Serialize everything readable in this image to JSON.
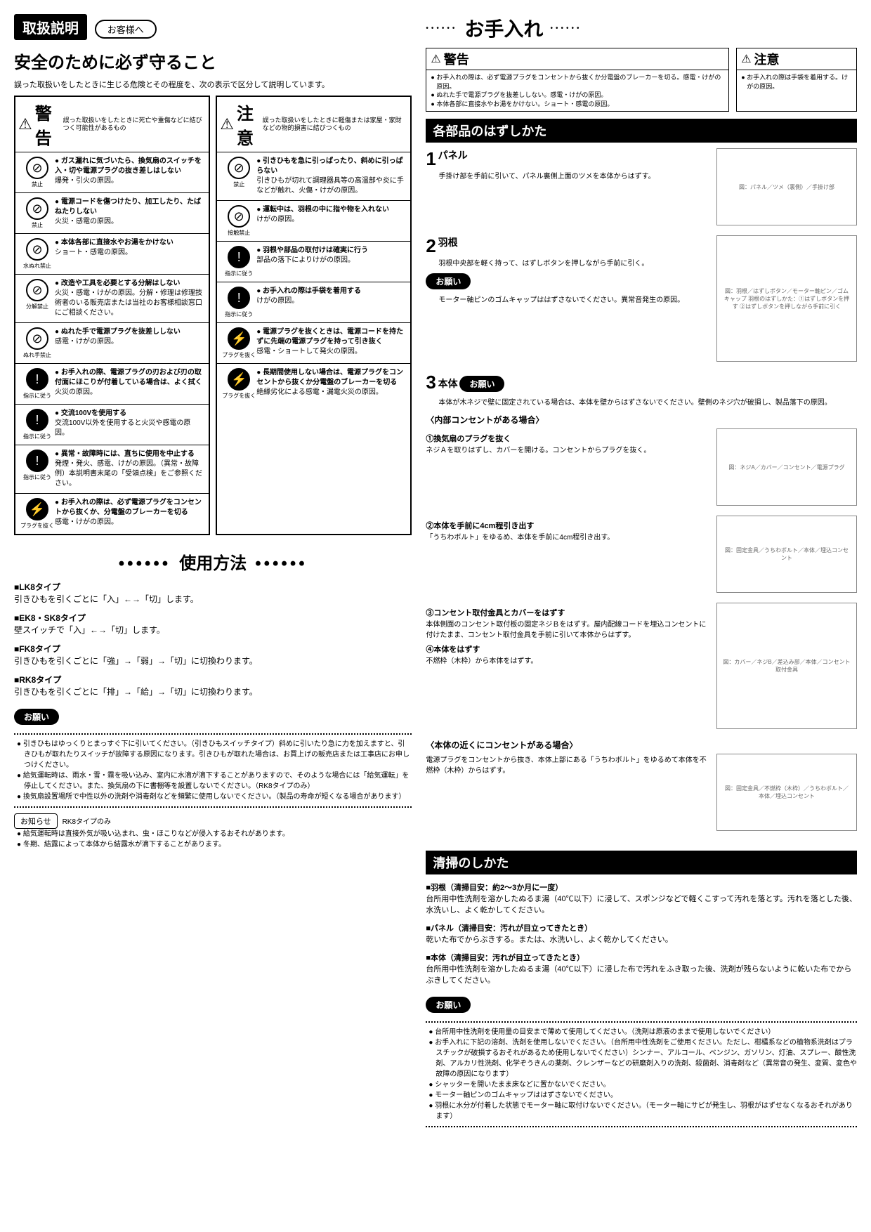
{
  "header": {
    "handling": "取扱説明",
    "customer": "お客様へ"
  },
  "safety": {
    "title": "安全のために必ず守ること",
    "lead": "誤った取扱いをしたときに生じる危険とその程度を、次の表示で区分して説明しています。",
    "warning_label": "警告",
    "warning_desc": "誤った取扱いをしたときに死亡や重傷などに結びつく可能性があるもの",
    "caution_label": "注意",
    "caution_desc": "誤った取扱いをしたときに軽傷または家屋・家財などの物的損害に結びつくもの"
  },
  "symbols": {
    "prohibit": "禁止",
    "nowater": "水ぬれ禁止",
    "nodisasm": "分解禁止",
    "nowethand": "ぬれ手禁止",
    "follow": "指示に従う",
    "unplug": "プラグを抜く",
    "notouch": "接触禁止"
  },
  "warnings": [
    {
      "sym": "prohibit",
      "main": "ガス漏れに気づいたら、換気扇のスイッチを入・切や電源プラグの抜き差しはしない",
      "sub": "爆発・引火の原因。"
    },
    {
      "sym": "prohibit",
      "main": "電源コードを傷つけたり、加工したり、たばねたりしない",
      "sub": "火災・感電の原因。"
    },
    {
      "sym": "nowater",
      "main": "本体各部に直接水やお湯をかけない",
      "sub": "ショート・感電の原因。"
    },
    {
      "sym": "nodisasm",
      "main": "改造や工具を必要とする分解はしない",
      "sub": "火災・感電・けがの原因。分解・修理は修理技術者のいる販売店または当社のお客様相談窓口にご相談ください。"
    },
    {
      "sym": "nowethand",
      "main": "ぬれた手で電源プラグを抜差ししない",
      "sub": "感電・けがの原因。"
    },
    {
      "sym": "follow",
      "main": "お手入れの際、電源プラグの刃および刃の取付面にほこりが付着している場合は、よく拭く",
      "sub": "火災の原因。"
    },
    {
      "sym": "follow",
      "main": "交流100Vを使用する",
      "sub": "交流100V以外を使用すると火災や感電の原因。"
    },
    {
      "sym": "follow",
      "main": "異常・故障時には、直ちに使用を中止する",
      "sub": "発煙・発火、感電、けがの原因。（異常・故障例）本説明書末尾の「受領点検」をご参照ください。"
    },
    {
      "sym": "unplug",
      "main": "お手入れの際は、必ず電源プラグをコンセントから抜くか、分電盤のブレーカーを切る",
      "sub": "感電・けがの原因。"
    }
  ],
  "cautions": [
    {
      "sym": "prohibit",
      "main": "引きひもを急に引っぱったり、斜めに引っぱらない",
      "sub": "引きひもが切れて調理器具等の高温部や炎に手などが触れ、火傷・けがの原因。"
    },
    {
      "sym": "notouch",
      "main": "運転中は、羽根の中に指や物を入れない",
      "sub": "けがの原因。"
    },
    {
      "sym": "follow",
      "main": "羽根や部品の取付けは確実に行う",
      "sub": "部品の落下によりけがの原因。"
    },
    {
      "sym": "follow",
      "main": "お手入れの際は手袋を着用する",
      "sub": "けがの原因。"
    },
    {
      "sym": "unplug",
      "main": "電源プラグを抜くときは、電源コードを持たずに先端の電源プラグを持って引き抜く",
      "sub": "感電・ショートして発火の原因。"
    },
    {
      "sym": "unplug",
      "main": "長期間使用しない場合は、電源プラグをコンセントから抜くか分電盤のブレーカーを切る",
      "sub": "絶縁劣化による感電・漏電火災の原因。"
    }
  ],
  "usage": {
    "title": "使用方法",
    "items": [
      {
        "label": "■LK8タイプ",
        "text": "引きひもを引くごとに「入」←→「切」します。"
      },
      {
        "label": "■EK8・SK8タイプ",
        "text": "壁スイッチで「入」←→「切」します。"
      },
      {
        "label": "■FK8タイプ",
        "text": "引きひもを引くごとに「強」→「弱」→「切」に切換わります。"
      },
      {
        "label": "■RK8タイプ",
        "text": "引きひもを引くごとに「排」→「給」→「切」に切換わります。"
      }
    ],
    "request": "お願い",
    "requests": [
      "引きひもはゆっくりとまっすぐ下に引いてください。（引きひもスイッチタイプ）斜めに引いたり急に力を加えますと、引きひもが取れたりスイッチが故障する原因になります。引きひもが取れた場合は、お買上げの販売店または工事店にお申しつけください。",
      "給気運転時は、雨水・雪・霧を吸い込み、室内に水滴が滴下することがありますので、そのような場合には「給気運転」を停止してください。また、換気扇の下に書棚等を設置しないでください。（RK8タイプのみ）",
      "換気扇設置場所で中性以外の洗剤や消毒剤などを頻繁に使用しないでください。（製品の寿命が短くなる場合があります）"
    ],
    "notice_label": "お知らせ",
    "notice_sub": "RK8タイプのみ",
    "notices": [
      "給気運転時は直接外気が吸い込まれ、虫・ほこりなどが侵入するおそれがあります。",
      "冬期、結露によって本体から結露水が滴下することがあります。"
    ]
  },
  "maint": {
    "title": "お手入れ",
    "warn_items": [
      "お手入れの際は、必ず電源プラグをコンセントから抜くか分電盤のブレーカーを切る。感電・けがの原因。",
      "ぬれた手で電源プラグを抜差ししない。感電・けがの原因。",
      "本体各部に直接水やお湯をかけない。ショート・感電の原因。"
    ],
    "caution_items": [
      "お手入れの際は手袋を着用する。けがの原因。"
    ]
  },
  "removal": {
    "title": "各部品のはずしかた",
    "panel": {
      "num": "1",
      "title": "パネル",
      "text": "手掛け部を手前に引いて、パネル裏側上面のツメを本体からはずす。"
    },
    "panel_fig": "図：パネル／ツメ（裏側）／手掛け部",
    "blade": {
      "num": "2",
      "title": "羽根",
      "text": "羽根中央部を軽く持って、はずしボタンを押しながら手前に引く。"
    },
    "blade_req_label": "お願い",
    "blade_req": "モーター軸ピンのゴムキャップははずさないでください。異常音発生の原因。",
    "blade_fig": "図：羽根／はずしボタン／モーター軸ピン／ゴムキャップ\n羽根のはずしかた：①はずしボタンを押す ②はずしボタンを押しながら手前に引く",
    "body": {
      "num": "3",
      "title": "本体"
    },
    "body_req": "本体が木ネジで壁に固定されている場合は、本体を壁からはずさないでください。壁側のネジ穴が破損し、製品落下の原因。",
    "inner_outlet": "〈内部コンセントがある場合〉",
    "sub1": {
      "h": "①換気扇のプラグを抜く",
      "t": "ネジＡを取りはずし、カバーを開ける。コンセントからプラグを抜く。"
    },
    "sub1_fig": "図：ネジA／カバー／コンセント／電源プラグ",
    "sub2": {
      "h": "②本体を手前に4cm程引き出す",
      "t": "「うちわボルト」をゆるめ、本体を手前に4cm程引き出す。"
    },
    "sub2_fig": "図：固定金具／うちわボルト／本体／埋込コンセント",
    "sub3": {
      "h": "③コンセント取付金具とカバーをはずす",
      "t": "本体側面のコンセント取付板の固定ネジＢをはずす。屋内配線コードを埋込コンセントに付けたまま、コンセント取付金具を手前に引いて本体からはずす。"
    },
    "sub3_fig": "図：カバー／ネジB／差込み部／本体／コンセント取付金具",
    "sub4": {
      "h": "④本体をはずす",
      "t": "不燃枠（木枠）から本体をはずす。"
    },
    "near_outlet": "〈本体の近くにコンセントがある場合〉",
    "near_text": "電源プラグをコンセントから抜き、本体上部にある「うちわボルト」をゆるめて本体を不燃枠（木枠）からはずす。",
    "near_fig": "図：固定金具／不燃枠（木枠）／うちわボルト／本体／埋込コンセント"
  },
  "cleaning": {
    "title": "清掃のしかた",
    "items": [
      {
        "h": "■羽根（清掃目安：約2〜3か月に一度）",
        "t": "台所用中性洗剤を溶かしたぬるま湯（40℃以下）に浸して、スポンジなどで軽くこすって汚れを落とす。汚れを落とした後、水洗いし、よく乾かしてください。"
      },
      {
        "h": "■パネル（清掃目安：汚れが目立ってきたとき）",
        "t": "乾いた布でからぶきする。または、水洗いし、よく乾かしてください。"
      },
      {
        "h": "■本体（清掃目安：汚れが目立ってきたとき）",
        "t": "台所用中性洗剤を溶かしたぬるま湯（40℃以下）に浸した布で汚れをふき取った後、洗剤が残らないように乾いた布でからぶきしてください。"
      }
    ],
    "req_label": "お願い",
    "reqs": [
      "台所用中性洗剤を使用量の目安まで薄めて使用してください。（洗剤は原液のままで使用しないでください）",
      "お手入れに下記の溶剤、洗剤を使用しないでください。（台所用中性洗剤をご使用ください。ただし、柑橘系などの植物系洗剤はプラスチックが破損するおそれがあるため使用しないでください）シンナー、アルコール、ベンジン、ガソリン、灯油、スプレー、酸性洗剤、アルカリ性洗剤、化学ぞうきんの薬剤、クレンザーなどの研磨剤入りの洗剤、殺菌剤、消毒剤など（異常音の発生、変質、変色や故障の原因になります）",
      "シャッターを開いたまま床などに置かないでください。",
      "モーター軸ピンのゴムキャップははずさないでください。",
      "羽根に水分が付着した状態でモーター軸に取付けないでください。（モーター軸にサビが発生し、羽根がはずせなくなるおそれがあります）"
    ]
  }
}
